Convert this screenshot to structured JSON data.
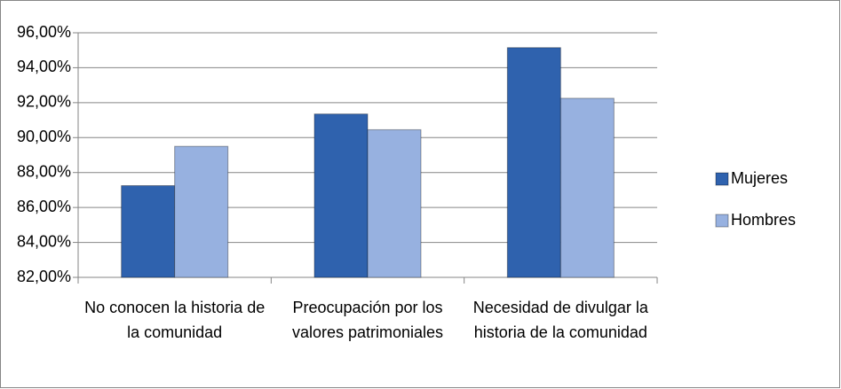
{
  "chart_data": {
    "type": "bar",
    "categories": [
      "No conocen la historia de la comunidad",
      "Preocupación por los valores patrimoniales",
      "Necesidad de divulgar la historia de la comunidad"
    ],
    "series": [
      {
        "name": "Mujeres",
        "color": "#2f62ae",
        "values": [
          87.25,
          91.35,
          95.15
        ]
      },
      {
        "name": "Hombres",
        "color": "#97b1e0",
        "values": [
          89.5,
          90.45,
          92.25
        ]
      }
    ],
    "ylim": [
      82,
      96
    ],
    "yticks": [
      {
        "value": 82,
        "label": "82,00%"
      },
      {
        "value": 84,
        "label": "84,00%"
      },
      {
        "value": 86,
        "label": "86,00%"
      },
      {
        "value": 88,
        "label": "88,00%"
      },
      {
        "value": 90,
        "label": "90,00%"
      },
      {
        "value": 92,
        "label": "92,00%"
      },
      {
        "value": 94,
        "label": "94,00%"
      },
      {
        "value": 96,
        "label": "96,00%"
      }
    ],
    "grid": true,
    "legend": "right"
  }
}
